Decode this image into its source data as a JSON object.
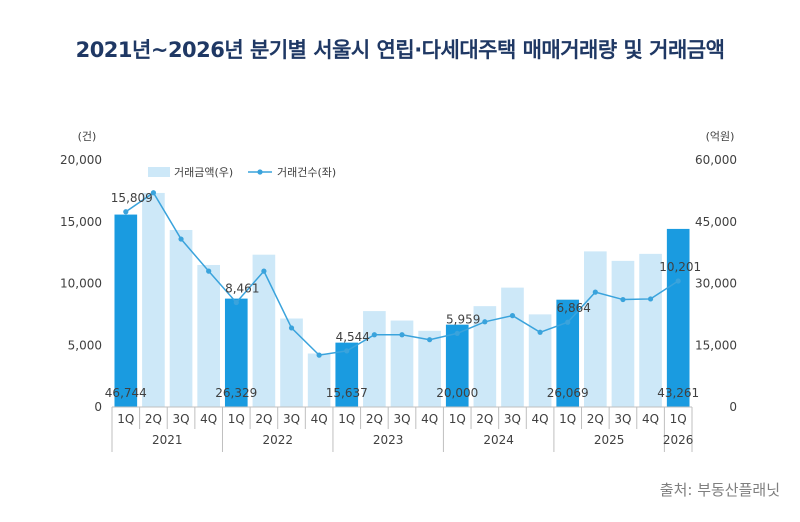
{
  "title": "2021년~2026년 분기별 서울시 연립·다세대주택 매매거래량 및 거래금액",
  "source": "출처: 부동산플래닛",
  "colors": {
    "bar": "#cde8f8",
    "bar_highlight": "#1a9be0",
    "line": "#3aa3dc",
    "axis": "#bfbfbf",
    "title": "#1f3864"
  },
  "chart_data": {
    "type": "bar",
    "title": "2021년~2026년 분기별 서울시 연립·다세대주택 매매거래량 및 거래금액",
    "left_axis": {
      "unit": "(건)",
      "ylim": [
        0,
        20000
      ],
      "ticks": [
        "0",
        "5,000",
        "10,000",
        "15,000",
        "20,000"
      ]
    },
    "right_axis": {
      "unit": "(억원)",
      "ylim": [
        0,
        60000
      ],
      "ticks": [
        "0",
        "15,000",
        "30,000",
        "45,000",
        "60,000"
      ]
    },
    "quarters": [
      "1Q",
      "2Q",
      "3Q",
      "4Q",
      "1Q",
      "2Q",
      "3Q",
      "4Q",
      "1Q",
      "2Q",
      "3Q",
      "4Q",
      "1Q",
      "2Q",
      "3Q",
      "4Q",
      "1Q",
      "2Q",
      "3Q",
      "4Q",
      "1Q"
    ],
    "years": [
      {
        "label": "2021",
        "span": 4
      },
      {
        "label": "2022",
        "span": 4
      },
      {
        "label": "2023",
        "span": 4
      },
      {
        "label": "2024",
        "span": 4
      },
      {
        "label": "2025",
        "span": 4
      },
      {
        "label": "2026",
        "span": 1
      }
    ],
    "legend": {
      "bar": "거래금액(우)",
      "line": "거래건수(좌)"
    },
    "series": [
      {
        "name": "거래금액(우)",
        "axis": "right",
        "type": "bar",
        "values": [
          46744,
          52000,
          43000,
          34500,
          26329,
          37000,
          21500,
          13000,
          15637,
          23300,
          21000,
          18500,
          20000,
          24500,
          29000,
          22500,
          26069,
          37800,
          35500,
          37200,
          43261
        ],
        "highlight": [
          0,
          4,
          8,
          12,
          16,
          20
        ]
      },
      {
        "name": "거래건수(좌)",
        "axis": "left",
        "type": "line",
        "values": [
          15809,
          17350,
          13600,
          11000,
          8461,
          11000,
          6400,
          4200,
          4544,
          5850,
          5850,
          5450,
          5959,
          6900,
          7400,
          6050,
          6864,
          9300,
          8700,
          8750,
          10201
        ]
      }
    ],
    "bar_labels": [
      "46,744",
      "26,329",
      "15,637",
      "20,000",
      "26,069",
      "43,261"
    ],
    "line_labels": [
      "15,809",
      "8,461",
      "4,544",
      "5,959",
      "6,864",
      "10,201"
    ],
    "label_indices": [
      0,
      4,
      8,
      12,
      16,
      20
    ],
    "grid": false,
    "legend_position": "top"
  }
}
